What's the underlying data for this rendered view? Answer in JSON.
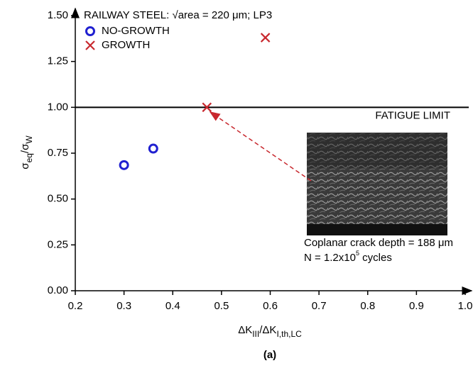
{
  "chart_data": {
    "type": "scatter",
    "title": "RAILWAY STEEL: √area = 220 μm; LP3",
    "x_label": [
      "ΔK",
      "III",
      "/ΔK",
      "I,th,LC"
    ],
    "y_label": [
      "σ",
      "eq",
      "/σ",
      "W"
    ],
    "caption": "(a)",
    "xlim": [
      0.2,
      1.0
    ],
    "ylim": [
      0,
      1.5
    ],
    "xticks": [
      0.2,
      0.3,
      0.4,
      0.5,
      0.6,
      0.7,
      0.8,
      0.9,
      {
        "value": 1.0,
        "label": "1.0"
      }
    ],
    "yticks": [
      {
        "value": 0,
        "label": "0.00"
      },
      {
        "value": 0.25,
        "label": "0.25"
      },
      {
        "value": 0.5,
        "label": "0.50"
      },
      {
        "value": 0.75,
        "label": "0.75"
      },
      {
        "value": 1.0,
        "label": "1.00"
      },
      {
        "value": 1.25,
        "label": "1.25"
      },
      {
        "value": 1.5,
        "label": "1.50"
      }
    ],
    "reference_line": {
      "value": 1.0,
      "label": "FATIGUE LIMIT"
    },
    "inset_text": [
      "Coplanar crack depth = 188 μm",
      [
        "N = 1.2x10",
        "5",
        " cycles"
      ]
    ],
    "series": [
      {
        "name": "NO-GROWTH",
        "color": "#2020d0",
        "marker": "circle",
        "x": [
          0.3,
          0.36
        ],
        "values": [
          0.685,
          0.775
        ]
      },
      {
        "name": "GROWTH",
        "color": "#c8282e",
        "marker": "cross",
        "x": [
          0.47,
          0.59
        ],
        "values": [
          1.0,
          1.38
        ]
      }
    ]
  }
}
